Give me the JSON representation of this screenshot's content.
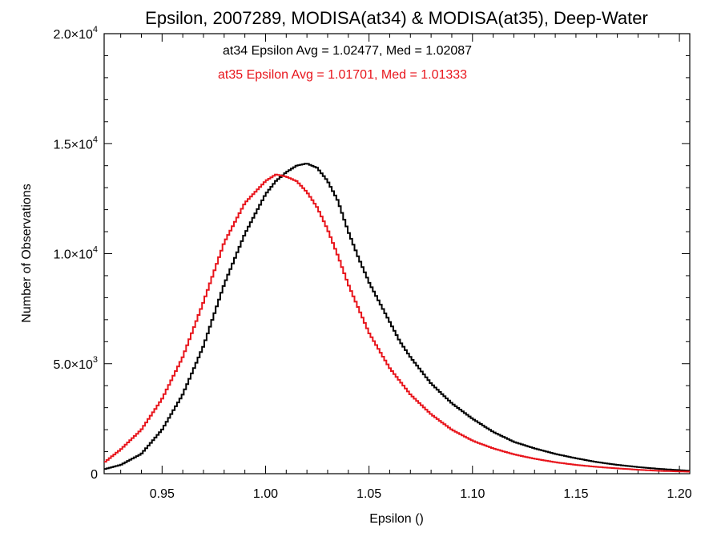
{
  "chart_data": {
    "type": "line",
    "title": "Epsilon, 2007289, MODISA(at34) & MODISA(at35), Deep-Water",
    "xlabel": "Epsilon ()",
    "ylabel": "Number of Observations",
    "xlim": [
      0.922,
      1.205
    ],
    "ylim": [
      0,
      20000
    ],
    "grid": false,
    "x_ticks": [
      {
        "value": 0.95,
        "label": "0.95"
      },
      {
        "value": 1.0,
        "label": "1.00"
      },
      {
        "value": 1.05,
        "label": "1.05"
      },
      {
        "value": 1.1,
        "label": "1.10"
      },
      {
        "value": 1.15,
        "label": "1.15"
      },
      {
        "value": 1.2,
        "label": "1.20"
      }
    ],
    "y_ticks": [
      {
        "value": 0,
        "mantissa": "0",
        "exponent": ""
      },
      {
        "value": 5000,
        "mantissa": "5.0×10",
        "exponent": "3"
      },
      {
        "value": 10000,
        "mantissa": "1.0×10",
        "exponent": "4"
      },
      {
        "value": 15000,
        "mantissa": "1.5×10",
        "exponent": "4"
      },
      {
        "value": 20000,
        "mantissa": "2.0×10",
        "exponent": "4"
      }
    ],
    "annotations": [
      {
        "text": "at34 Epsilon Avg = 1.02477, Med = 1.02087",
        "color": "#000000"
      },
      {
        "text": "at35 Epsilon Avg = 1.01701, Med = 1.01333",
        "color": "#e8141b"
      }
    ],
    "series": [
      {
        "color": "#000000",
        "x": [
          0.922,
          0.93,
          0.94,
          0.95,
          0.96,
          0.97,
          0.98,
          0.99,
          1.0,
          1.005,
          1.01,
          1.015,
          1.02,
          1.025,
          1.03,
          1.035,
          1.04,
          1.045,
          1.05,
          1.055,
          1.06,
          1.065,
          1.07,
          1.08,
          1.09,
          1.1,
          1.11,
          1.12,
          1.13,
          1.14,
          1.15,
          1.16,
          1.17,
          1.18,
          1.19,
          1.205
        ],
        "y": [
          200,
          400,
          900,
          2000,
          3600,
          5800,
          8600,
          10900,
          12700,
          13300,
          13700,
          14000,
          14100,
          13900,
          13300,
          12400,
          11000,
          9800,
          8700,
          7800,
          6900,
          6000,
          5300,
          4100,
          3200,
          2500,
          1900,
          1450,
          1150,
          900,
          700,
          530,
          400,
          300,
          220,
          130
        ]
      },
      {
        "color": "#e8141b",
        "x": [
          0.922,
          0.93,
          0.94,
          0.95,
          0.96,
          0.97,
          0.98,
          0.99,
          1.0,
          1.005,
          1.01,
          1.015,
          1.02,
          1.025,
          1.03,
          1.035,
          1.04,
          1.045,
          1.05,
          1.055,
          1.06,
          1.065,
          1.07,
          1.08,
          1.09,
          1.1,
          1.11,
          1.12,
          1.13,
          1.14,
          1.15,
          1.16,
          1.17,
          1.18,
          1.19,
          1.205
        ],
        "y": [
          500,
          1100,
          2000,
          3400,
          5300,
          7800,
          10500,
          12300,
          13300,
          13600,
          13500,
          13300,
          12800,
          12100,
          11100,
          9900,
          8600,
          7500,
          6400,
          5600,
          4800,
          4200,
          3600,
          2700,
          2000,
          1500,
          1150,
          880,
          680,
          520,
          400,
          310,
          240,
          180,
          130,
          90
        ]
      }
    ]
  }
}
